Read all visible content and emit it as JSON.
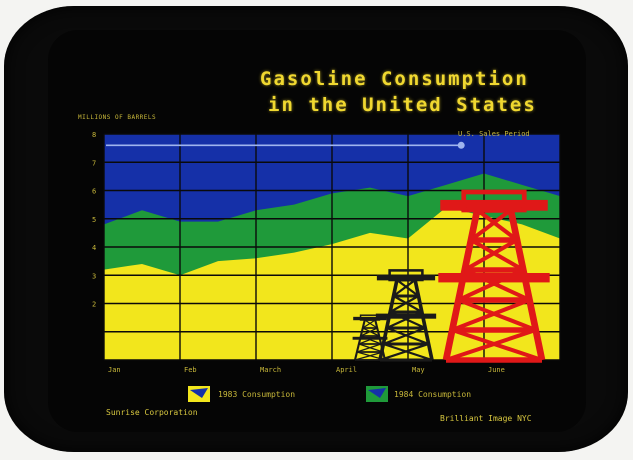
{
  "chart_data": {
    "type": "area",
    "title_line1": "Gasoline Consumption",
    "title_line2": "in the United States",
    "ylabel": "MILLIONS OF BARRELS",
    "yticks": [
      "2",
      "3",
      "4",
      "5",
      "6",
      "7",
      "8"
    ],
    "ylim": [
      0,
      8
    ],
    "categories": [
      "Jan",
      "Feb",
      "March",
      "April",
      "May",
      "June"
    ],
    "reference_line": {
      "label": "U.S. Sales Period",
      "value": 7.6
    },
    "series": [
      {
        "name": "1983 Consumption",
        "color": "#f2e61c",
        "x": [
          0,
          0.5,
          1,
          1.5,
          2,
          2.5,
          3,
          3.5,
          4,
          4.5,
          5,
          5.5,
          6
        ],
        "values": [
          3.2,
          3.4,
          3.0,
          3.5,
          3.6,
          3.8,
          4.1,
          4.5,
          4.3,
          5.4,
          5.1,
          4.8,
          4.3
        ]
      },
      {
        "name": "1984 Consumption",
        "color": "#1f9a3a",
        "x": [
          0,
          0.5,
          1,
          1.5,
          2,
          2.5,
          3,
          3.5,
          4,
          4.5,
          5,
          5.5,
          6
        ],
        "values": [
          4.8,
          5.3,
          4.9,
          4.9,
          5.3,
          5.5,
          5.9,
          6.1,
          5.8,
          6.2,
          6.6,
          6.2,
          5.8
        ]
      }
    ],
    "background_color": "#1530a8",
    "grid": true,
    "legend_position": "bottom"
  },
  "legend": {
    "item1": "1983 Consumption",
    "item2": "1984 Consumption"
  },
  "footer": {
    "left": "Sunrise Corporation",
    "right": "Brilliant Image NYC"
  },
  "colors": {
    "title": "#f0d830",
    "derrick": "#e01818",
    "derrick_dark": "#1a1a1a"
  },
  "icons": [
    "oil-derrick-icon"
  ]
}
